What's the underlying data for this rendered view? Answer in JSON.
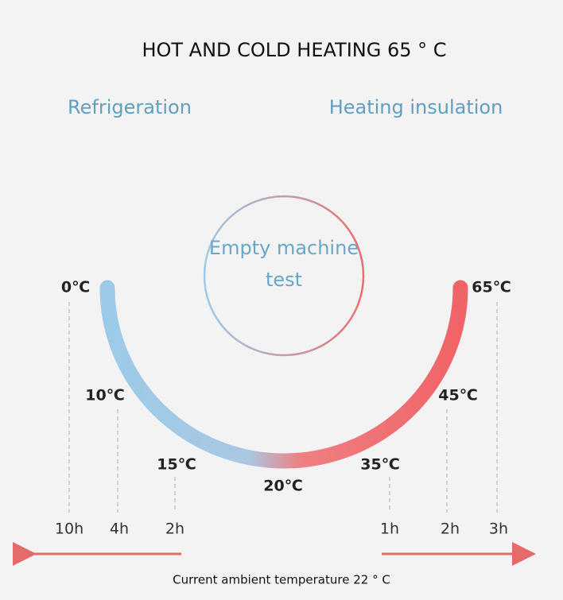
{
  "header": {
    "title": "HOT AND COLD HEATING 65 ° C"
  },
  "modes": {
    "cold": "Refrigeration",
    "hot": "Heating insulation"
  },
  "center": {
    "lines": [
      "Empty machine",
      "test"
    ]
  },
  "temperatures": [
    "0℃",
    "10℃",
    "15℃",
    "20℃",
    "35℃",
    "45℃",
    "65℃"
  ],
  "times": [
    "10h",
    "4h",
    "2h",
    "1h",
    "2h",
    "3h"
  ],
  "footer": {
    "text": "Current ambient temperature 22 ° C"
  }
}
